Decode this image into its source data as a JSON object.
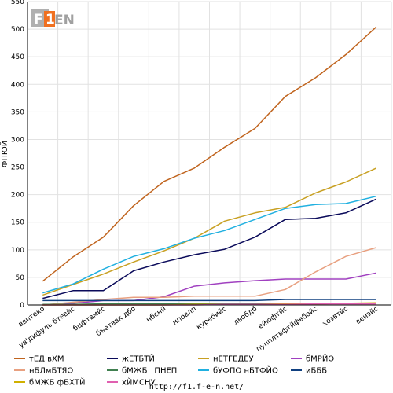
{
  "chart_data": {
    "type": "line",
    "ylabel": "ФПЮЙ",
    "ylim": [
      0,
      550
    ],
    "yticks": [
      0,
      50,
      100,
      150,
      200,
      250,
      300,
      350,
      400,
      450,
      500,
      550
    ],
    "grid": true,
    "legend_position": "bottom",
    "categories": [
      "ввитеко",
      "ув'дифуль бтевйс",
      "бцфтвмйс",
      "бъетввк дбо",
      "нбснй",
      "нповлп",
      "куребийс",
      "лвобдб",
      "ейюфтйс",
      "пуиплтвфтйфвбойс",
      "хоэвтйс",
      "веиэйс"
    ],
    "series": [
      {
        "name": "тЕД вХМ",
        "color": "#c0641e",
        "values": [
          43,
          87,
          123,
          180,
          224,
          248,
          286,
          320,
          378,
          412,
          454,
          504
        ]
      },
      {
        "name": "жЕТБТЙ",
        "color": "#0a0a5a",
        "values": [
          12,
          26,
          26,
          62,
          78,
          91,
          101,
          123,
          155,
          157,
          167,
          192
        ]
      },
      {
        "name": "нЕТГЕДЕУ",
        "color": "#c8a022",
        "values": [
          18,
          37,
          56,
          78,
          98,
          121,
          152,
          167,
          177,
          203,
          223,
          248
        ]
      },
      {
        "name": "бМРЙО",
        "color": "#a040c0",
        "values": [
          0,
          3,
          8,
          8,
          15,
          34,
          40,
          44,
          47,
          47,
          47,
          58
        ]
      },
      {
        "name": "нБЛмБТЯО",
        "color": "#e8a080",
        "values": [
          0,
          5,
          10,
          14,
          14,
          16,
          16,
          16,
          28,
          60,
          88,
          104
        ]
      },
      {
        "name": "бМЖБ тПНЕП",
        "color": "#408050",
        "values": [
          1,
          1,
          2,
          2,
          2,
          2,
          2,
          2,
          2,
          2,
          3,
          3
        ]
      },
      {
        "name": "бУФПО нБТФЙО",
        "color": "#20b0e0",
        "values": [
          22,
          38,
          65,
          88,
          102,
          121,
          135,
          155,
          175,
          182,
          184,
          197
        ]
      },
      {
        "name": "иБББ",
        "color": "#104080",
        "values": [
          8,
          8,
          8,
          8,
          8,
          8,
          8,
          8,
          10,
          10,
          10,
          10
        ]
      },
      {
        "name": "бМЖБ фБХТЙ",
        "color": "#d0b000",
        "values": [
          0,
          0,
          0,
          0,
          0,
          1,
          1,
          1,
          2,
          2,
          3,
          4
        ]
      },
      {
        "name": "хЙМСНУ",
        "color": "#e060b0",
        "values": [
          0,
          0,
          0,
          0,
          0,
          0,
          1,
          1,
          1,
          2,
          2,
          2
        ]
      }
    ]
  },
  "logo": {
    "part1": "F",
    "part2": "1",
    "part3": "EN"
  },
  "footer": {
    "url": "http://f1.f-e-n.net/"
  }
}
